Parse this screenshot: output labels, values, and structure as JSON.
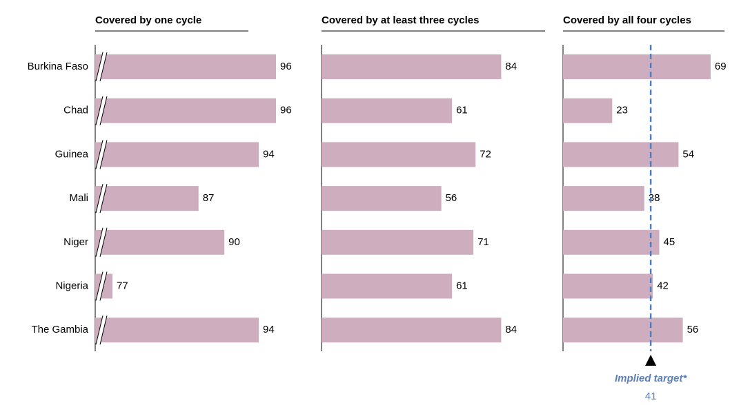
{
  "chart_data": [
    {
      "type": "bar",
      "title": "Covered by one cycle",
      "categories": [
        "Burkina Faso",
        "Chad",
        "Guinea",
        "Mali",
        "Niger",
        "Nigeria",
        "The Gambia"
      ],
      "values": [
        96,
        96,
        94,
        87,
        90,
        77,
        94
      ],
      "color": "#cdadbe",
      "xlim": [
        75,
        96
      ],
      "axis_break": true
    },
    {
      "type": "bar",
      "title": "Covered by at least three cycles",
      "values": [
        84,
        61,
        72,
        56,
        71,
        61,
        84
      ],
      "color": "#cdadbe",
      "xlim": [
        0,
        100
      ]
    },
    {
      "type": "bar",
      "title": "Covered by all four cycles",
      "values": [
        69,
        23,
        54,
        38,
        45,
        42,
        56
      ],
      "color": "#cdadbe",
      "xlim": [
        0,
        75
      ],
      "target": {
        "label": "Implied target*",
        "value": 41,
        "color": "#4f7fc0"
      }
    }
  ]
}
